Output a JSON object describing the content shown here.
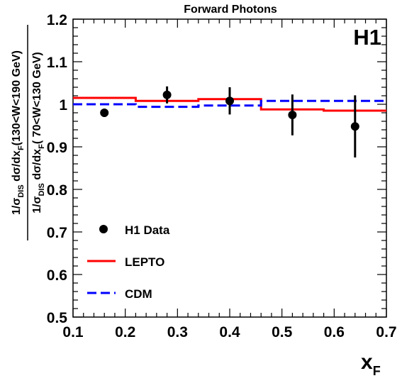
{
  "chart_data": {
    "type": "line",
    "title": "Forward Photons",
    "experiment_label": "H1",
    "xlabel": "x",
    "xlabel_sub": "F",
    "ylabel_numerator": {
      "prefix": "1/σ",
      "prefix_sub": "DIS",
      "mid": " dσ/dx",
      "mid_sub": "F",
      "range": "(130<W<190 GeV)"
    },
    "ylabel_denominator": {
      "prefix": "1/σ",
      "prefix_sub": "DIS",
      "mid": " dσ/dx",
      "mid_sub": "F",
      "range": "( 70<W<130 GeV)"
    },
    "xlim": [
      0.1,
      0.7
    ],
    "ylim": [
      0.5,
      1.2
    ],
    "x_ticks": [
      0.1,
      0.2,
      0.3,
      0.4,
      0.5,
      0.6,
      0.7
    ],
    "x_tick_labels": [
      "0.1",
      "0.2",
      "0.3",
      "0.4",
      "0.5",
      "0.6",
      "0.7"
    ],
    "y_ticks": [
      0.5,
      0.6,
      0.7,
      0.8,
      0.9,
      1.0,
      1.1,
      1.2
    ],
    "y_tick_labels": [
      "0.5",
      "0.6",
      "0.7",
      "0.8",
      "0.9",
      "1",
      "1.1",
      "1.2"
    ],
    "grid": false,
    "legend_position": "bottom-left",
    "series": [
      {
        "name": "H1 Data",
        "kind": "points",
        "color": "#000000",
        "x": [
          0.16,
          0.28,
          0.4,
          0.52,
          0.64
        ],
        "y": [
          0.98,
          1.022,
          1.008,
          0.975,
          0.948
        ],
        "err_low": [
          0.01,
          0.02,
          0.032,
          0.048,
          0.073
        ],
        "err_high": [
          0.01,
          0.02,
          0.032,
          0.048,
          0.073
        ]
      },
      {
        "name": "LEPTO",
        "kind": "histogram",
        "color": "#ff0000",
        "edges": [
          0.1,
          0.22,
          0.34,
          0.46,
          0.58,
          0.7
        ],
        "values": [
          1.015,
          1.008,
          1.012,
          0.988,
          0.985
        ]
      },
      {
        "name": "CDM",
        "kind": "histogram",
        "color": "#0000ff",
        "dashed": true,
        "edges": [
          0.1,
          0.22,
          0.34,
          0.46,
          0.58,
          0.7
        ],
        "values": [
          1.0,
          0.994,
          0.997,
          1.008,
          1.008
        ]
      }
    ]
  }
}
